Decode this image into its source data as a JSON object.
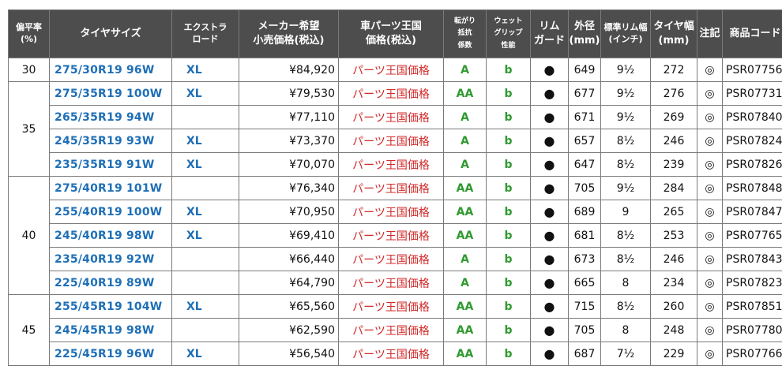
{
  "headers": {
    "aspect": [
      "偏平率",
      "(%)"
    ],
    "size": "タイヤサイズ",
    "extra_load": [
      "エクストラ",
      "ロード"
    ],
    "msrp": [
      "メーカー希望",
      "小売価格(税込)"
    ],
    "kingdom_price": [
      "車パーツ王国",
      "価格(税込)"
    ],
    "rolling": [
      "転がり",
      "抵抗",
      "係数"
    ],
    "wet_grip": [
      "ウェット",
      "グリップ",
      "性能"
    ],
    "rim_guard": [
      "リム",
      "ガード"
    ],
    "outer_diameter": [
      "外径",
      "(mm)"
    ],
    "rim_width": [
      "標準リム幅",
      "(インチ)"
    ],
    "tire_width": [
      "タイヤ幅",
      "(mm)"
    ],
    "note": "注記",
    "product_code": "商品コード"
  },
  "groups": [
    {
      "aspect": "30",
      "rows": [
        {
          "size": "275/30R19 96W",
          "xl": "XL",
          "msrp": "¥84,920",
          "kingdom_price": "パーツ王国価格",
          "rolling": "A",
          "wet_grip": "b",
          "rim_guard": "●",
          "outer_diameter": "649",
          "rim_width": "9½",
          "tire_width": "272",
          "note": "◎",
          "code": "PSR07756"
        }
      ]
    },
    {
      "aspect": "35",
      "rows": [
        {
          "size": "275/35R19 100W",
          "xl": "XL",
          "msrp": "¥79,530",
          "kingdom_price": "パーツ王国価格",
          "rolling": "AA",
          "wet_grip": "b",
          "rim_guard": "●",
          "outer_diameter": "677",
          "rim_width": "9½",
          "tire_width": "276",
          "note": "◎",
          "code": "PSR07731"
        },
        {
          "size": "265/35R19 94W",
          "xl": "",
          "msrp": "¥77,110",
          "kingdom_price": "パーツ王国価格",
          "rolling": "A",
          "wet_grip": "b",
          "rim_guard": "●",
          "outer_diameter": "671",
          "rim_width": "9½",
          "tire_width": "269",
          "note": "◎",
          "code": "PSR07840"
        },
        {
          "size": "245/35R19 93W",
          "xl": "XL",
          "msrp": "¥73,370",
          "kingdom_price": "パーツ王国価格",
          "rolling": "A",
          "wet_grip": "b",
          "rim_guard": "●",
          "outer_diameter": "657",
          "rim_width": "8½",
          "tire_width": "246",
          "note": "◎",
          "code": "PSR07824"
        },
        {
          "size": "235/35R19 91W",
          "xl": "XL",
          "msrp": "¥70,070",
          "kingdom_price": "パーツ王国価格",
          "rolling": "A",
          "wet_grip": "b",
          "rim_guard": "●",
          "outer_diameter": "647",
          "rim_width": "8½",
          "tire_width": "239",
          "note": "◎",
          "code": "PSR07826"
        }
      ]
    },
    {
      "aspect": "40",
      "rows": [
        {
          "size": "275/40R19 101W",
          "xl": "",
          "msrp": "¥76,340",
          "kingdom_price": "パーツ王国価格",
          "rolling": "AA",
          "wet_grip": "b",
          "rim_guard": "●",
          "outer_diameter": "705",
          "rim_width": "9½",
          "tire_width": "284",
          "note": "◎",
          "code": "PSR07848"
        },
        {
          "size": "255/40R19 100W",
          "xl": "XL",
          "msrp": "¥70,950",
          "kingdom_price": "パーツ王国価格",
          "rolling": "AA",
          "wet_grip": "b",
          "rim_guard": "●",
          "outer_diameter": "689",
          "rim_width": "9",
          "tire_width": "265",
          "note": "◎",
          "code": "PSR07847"
        },
        {
          "size": "245/40R19 98W",
          "xl": "XL",
          "msrp": "¥69,410",
          "kingdom_price": "パーツ王国価格",
          "rolling": "AA",
          "wet_grip": "b",
          "rim_guard": "●",
          "outer_diameter": "681",
          "rim_width": "8½",
          "tire_width": "253",
          "note": "◎",
          "code": "PSR07765"
        },
        {
          "size": "235/40R19 92W",
          "xl": "",
          "msrp": "¥66,440",
          "kingdom_price": "パーツ王国価格",
          "rolling": "A",
          "wet_grip": "b",
          "rim_guard": "●",
          "outer_diameter": "673",
          "rim_width": "8½",
          "tire_width": "246",
          "note": "◎",
          "code": "PSR07843"
        },
        {
          "size": "225/40R19 89W",
          "xl": "",
          "msrp": "¥64,790",
          "kingdom_price": "パーツ王国価格",
          "rolling": "A",
          "wet_grip": "b",
          "rim_guard": "●",
          "outer_diameter": "665",
          "rim_width": "8",
          "tire_width": "234",
          "note": "◎",
          "code": "PSR07823"
        }
      ]
    },
    {
      "aspect": "45",
      "rows": [
        {
          "size": "255/45R19 104W",
          "xl": "XL",
          "msrp": "¥65,560",
          "kingdom_price": "パーツ王国価格",
          "rolling": "AA",
          "wet_grip": "b",
          "rim_guard": "●",
          "outer_diameter": "715",
          "rim_width": "8½",
          "tire_width": "260",
          "note": "◎",
          "code": "PSR07851"
        },
        {
          "size": "245/45R19 98W",
          "xl": "",
          "msrp": "¥62,590",
          "kingdom_price": "パーツ王国価格",
          "rolling": "AA",
          "wet_grip": "b",
          "rim_guard": "●",
          "outer_diameter": "705",
          "rim_width": "8",
          "tire_width": "248",
          "note": "◎",
          "code": "PSR07780"
        },
        {
          "size": "225/45R19 96W",
          "xl": "XL",
          "msrp": "¥56,540",
          "kingdom_price": "パーツ王国価格",
          "rolling": "AA",
          "wet_grip": "b",
          "rim_guard": "●",
          "outer_diameter": "687",
          "rim_width": "7½",
          "tire_width": "229",
          "note": "◎",
          "code": "PSR07766"
        }
      ]
    }
  ],
  "colors": {
    "header_bg": "#4d4d4d",
    "size_link": "#1f6fb6",
    "kingdom_price": "#d12a2a",
    "grade": "#2f9a2f"
  }
}
